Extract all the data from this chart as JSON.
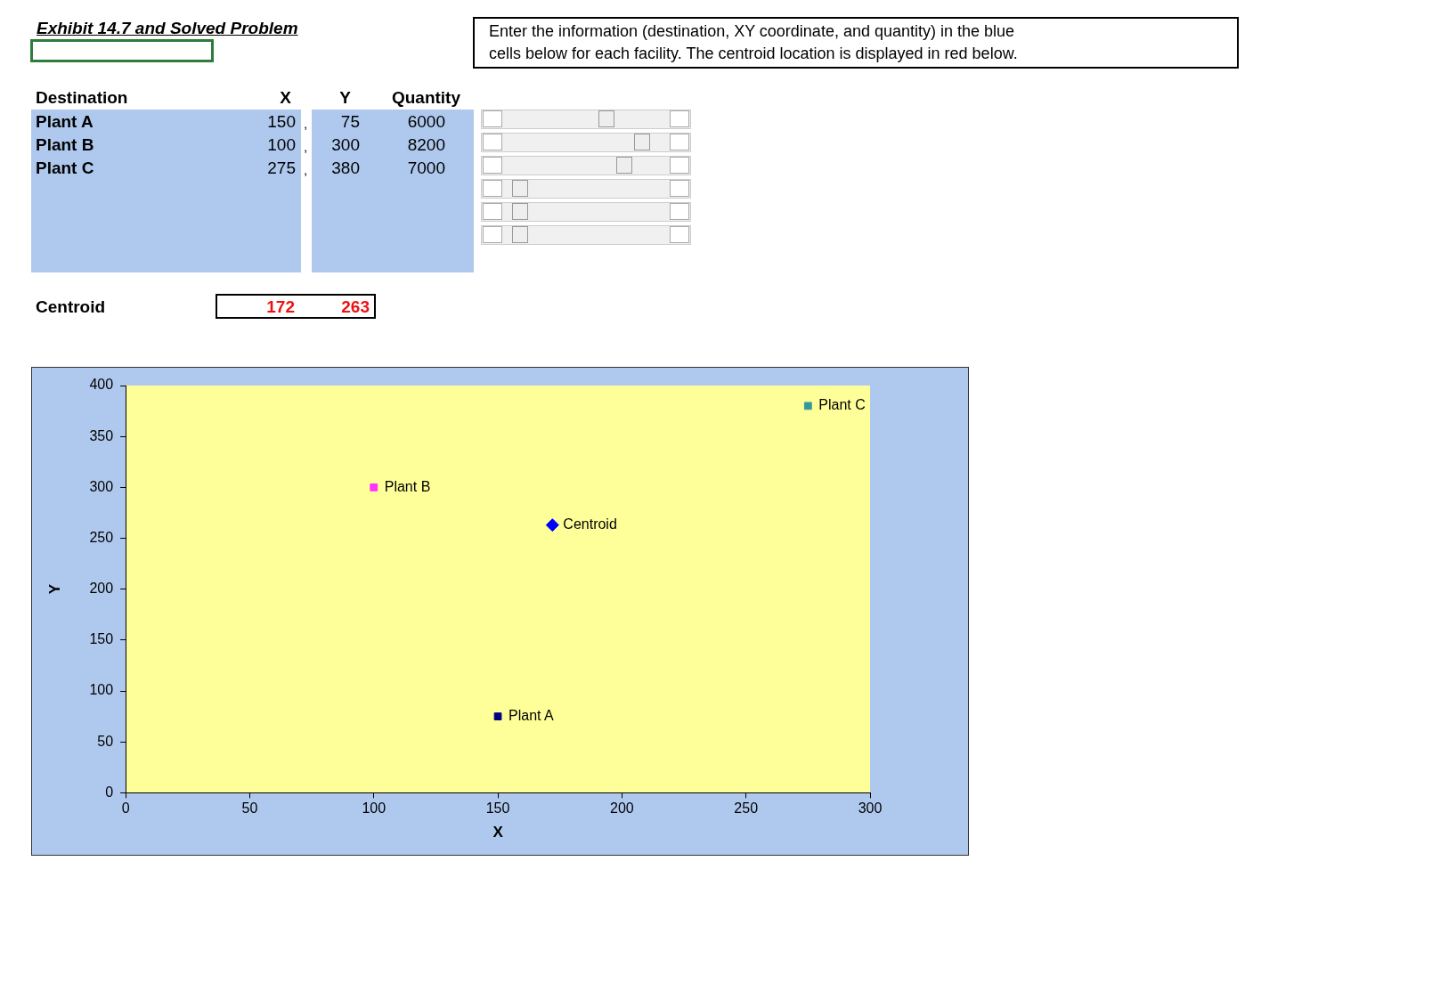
{
  "chart_data": [
    {
      "type": "other",
      "title": "Exhibit 14.7 and Solved Problem",
      "xlabel": "Destination",
      "categories": [
        "Plant A",
        "Plant B",
        "Plant C"
      ],
      "series": [
        {
          "name": "X",
          "values": [
            150,
            100,
            275
          ]
        },
        {
          "name": "Y",
          "values": [
            75,
            300,
            380
          ]
        },
        {
          "name": "Quantity",
          "values": [
            6000,
            8200,
            7000
          ]
        }
      ],
      "data_labels": true,
      "annotations": [
        "Enter the information (destination, XY coordinate, and quantity) in the blue cells below for each facility.  The centroid location is displayed in red below.",
        "Centroid",
        "172",
        "263",
        ",",
        ",",
        ","
      ]
    },
    {
      "type": "scatter",
      "xlabel": "X",
      "ylabel": "Y",
      "xlim": [
        0,
        300
      ],
      "ylim": [
        0,
        400
      ],
      "xticks": [
        0,
        50,
        100,
        150,
        200,
        250,
        300
      ],
      "yticks": [
        0,
        50,
        100,
        150,
        200,
        250,
        300,
        350,
        400
      ],
      "grid": false,
      "legend": false,
      "marker": "square",
      "series": [
        {
          "name": "Plant A",
          "color": "#000080",
          "x": [
            150
          ],
          "values": [
            75
          ]
        },
        {
          "name": "Plant B",
          "color": "#ff33ff",
          "x": [
            100
          ],
          "values": [
            300
          ]
        },
        {
          "name": "Plant C",
          "color": "#339999",
          "x": [
            275
          ],
          "values": [
            380
          ]
        },
        {
          "name": "Centroid",
          "color": "#0000ff",
          "x": [
            172
          ],
          "values": [
            263
          ],
          "marker": "diamond"
        }
      ]
    }
  ]
}
